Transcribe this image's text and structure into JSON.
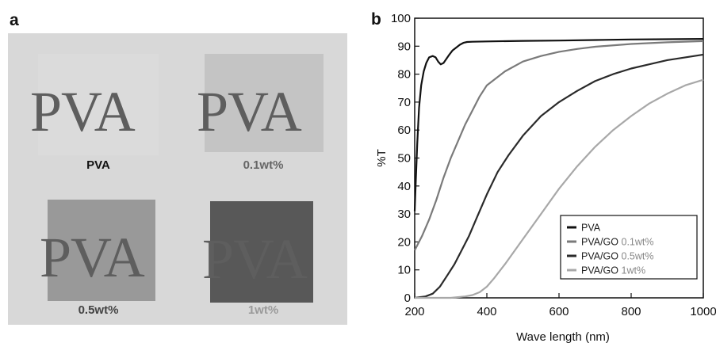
{
  "panel_a": {
    "letter": "a",
    "films": [
      {
        "word": "PVA",
        "label": "PVA",
        "film_color": "#dbdbdb",
        "label_color": "#111111"
      },
      {
        "word": "PVA",
        "label": "0.1wt%",
        "film_color": "#c4c4c4",
        "label_color": "#666666"
      },
      {
        "word": "PVA",
        "label": "0.5wt%",
        "film_color": "#999999",
        "label_color": "#444444"
      },
      {
        "word": "PVA",
        "label": "1wt%",
        "film_color": "#585858",
        "label_color": "#9a9a9a"
      }
    ]
  },
  "chart_data": {
    "panel_letter": "b",
    "type": "line",
    "xlabel": "Wave length (nm)",
    "ylabel": "%T",
    "xlim": [
      200,
      1000
    ],
    "ylim": [
      0,
      100
    ],
    "xticks": [
      200,
      400,
      600,
      800,
      1000
    ],
    "yticks": [
      0,
      10,
      20,
      30,
      40,
      50,
      60,
      70,
      80,
      90,
      100
    ],
    "grid": false,
    "legend_position": "bottom-right",
    "series": [
      {
        "name": "PVA",
        "name_prefix": "PVA",
        "name_suffix": "",
        "color": "#111111",
        "x": [
          200,
          203,
          207,
          212,
          218,
          225,
          232,
          240,
          250,
          258,
          265,
          272,
          280,
          288,
          296,
          305,
          315,
          325,
          335,
          345,
          360,
          400,
          500,
          600,
          700,
          800,
          900,
          1000
        ],
        "y": [
          31,
          42,
          55,
          68,
          76,
          81,
          84,
          86,
          86.5,
          86,
          84.5,
          83.5,
          84,
          85.5,
          87,
          88.5,
          89.5,
          90.5,
          91.2,
          91.5,
          91.6,
          91.7,
          91.9,
          92,
          92.2,
          92.4,
          92.5,
          92.6
        ]
      },
      {
        "name": "PVA/GO 0.1wt%",
        "name_prefix": "PVA/GO",
        "name_suffix": "0.1wt%",
        "color": "#7a7a7a",
        "x": [
          200,
          220,
          240,
          260,
          280,
          300,
          320,
          340,
          360,
          380,
          400,
          450,
          500,
          550,
          600,
          650,
          700,
          800,
          900,
          1000
        ],
        "y": [
          17,
          22,
          28,
          35,
          43,
          50,
          56,
          62,
          67,
          72,
          76,
          81,
          84.5,
          86.5,
          88,
          89,
          89.8,
          90.8,
          91.4,
          91.8
        ]
      },
      {
        "name": "PVA/GO 0.5wt%",
        "name_prefix": "PVA/GO",
        "name_suffix": "0.5wt%",
        "color": "#2a2a2a",
        "x": [
          200,
          230,
          250,
          270,
          290,
          310,
          330,
          350,
          370,
          400,
          430,
          460,
          500,
          550,
          600,
          650,
          700,
          750,
          800,
          850,
          900,
          950,
          1000
        ],
        "y": [
          0,
          0.5,
          1.5,
          4,
          8,
          12,
          17,
          22,
          28,
          37,
          45,
          51,
          58,
          65,
          70,
          74,
          77.5,
          80,
          82,
          83.5,
          85,
          86,
          87
        ]
      },
      {
        "name": "PVA/GO 1wt%",
        "name_prefix": "PVA/GO",
        "name_suffix": "1wt%",
        "color": "#a8a8a8",
        "x": [
          200,
          300,
          340,
          360,
          380,
          400,
          420,
          450,
          500,
          550,
          600,
          650,
          700,
          750,
          800,
          850,
          900,
          950,
          1000
        ],
        "y": [
          0,
          0,
          0.5,
          1,
          2,
          4,
          7,
          12,
          21,
          30,
          39,
          47,
          54,
          60,
          65,
          69.5,
          73,
          76,
          78
        ]
      }
    ]
  }
}
